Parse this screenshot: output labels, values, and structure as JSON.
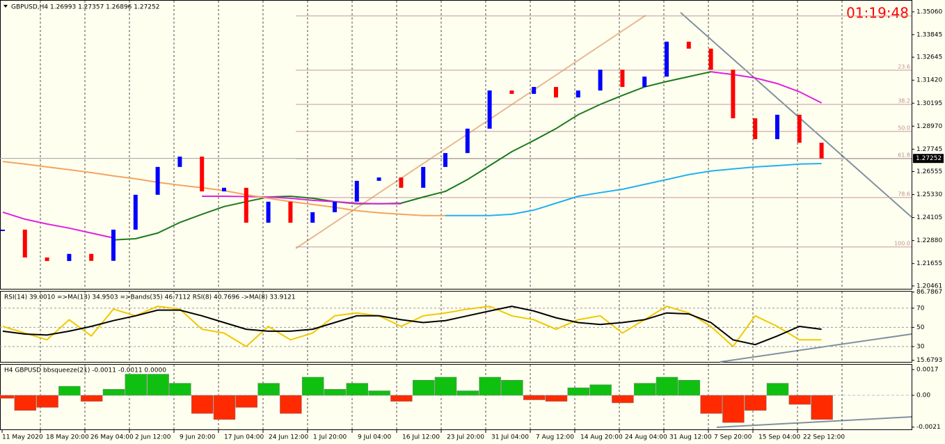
{
  "chart_data": [
    {
      "type": "price",
      "title": "GBPUSD,H4  1.26993 1.27357 1.26896 1.27252",
      "timer": "01:19:48",
      "current_price": {
        "value": 1.27252,
        "label": "1.27252"
      },
      "ylim": [
        1.2031,
        1.3569
      ],
      "yticks": [
        {
          "value": 1.3506,
          "label": "1.35060"
        },
        {
          "value": 1.33845,
          "label": "1.33845"
        },
        {
          "value": 1.32645,
          "label": "1.32645"
        },
        {
          "value": 1.3142,
          "label": "1.31420"
        },
        {
          "value": 1.30195,
          "label": "1.30195"
        },
        {
          "value": 1.2897,
          "label": "1.28970"
        },
        {
          "value": 1.27745,
          "label": "1.27745"
        },
        1.26555,
        {
          "value": 1.2533,
          "label": "1.25330"
        },
        1.24105,
        {
          "value": 1.2288,
          "label": "1.22880"
        },
        1.21655,
        1.20461
      ],
      "levels": [
        {
          "value": 1.3484
        },
        {
          "value": 1.3195,
          "label": "23.6"
        },
        {
          "value": 1.3013,
          "label": "38.2"
        },
        {
          "value": 1.2869,
          "label": "50.0"
        },
        {
          "value": 1.2724,
          "label": "61.8"
        },
        {
          "value": 1.2517,
          "label": "78.6"
        },
        {
          "value": 1.2254,
          "label": "100.0"
        }
      ],
      "up_color": "#0000ff",
      "down_color": "#ff0000",
      "values": [
        1.2346,
        1.2198,
        1.2179,
        1.2217,
        1.218,
        1.2346,
        1.2532,
        1.268,
        1.2735,
        1.255,
        1.2569,
        1.2383,
        1.2495,
        1.2383,
        1.2439,
        1.2495,
        1.2606,
        1.2624,
        1.2569,
        1.268,
        1.2754,
        1.2884,
        1.3087,
        1.3069,
        1.3106,
        1.305,
        1.3087,
        1.3198,
        1.3106,
        1.3161,
        1.3347,
        1.331,
        1.3198,
        1.2939,
        1.2828,
        1.2958,
        1.2809,
        1.2725
      ],
      "series": [
        {
          "color": "#1a7a1a",
          "values": [
            null,
            null,
            null,
            null,
            null,
            1.2291,
            1.2298,
            1.2328,
            1.2384,
            1.2428,
            1.2469,
            1.2495,
            1.252,
            1.2524,
            1.2513,
            1.2495,
            1.2484,
            1.2484,
            1.2487,
            1.252,
            1.255,
            1.2613,
            1.2687,
            1.2761,
            1.2821,
            1.2884,
            1.2958,
            1.3013,
            1.3061,
            1.3106,
            1.3135,
            1.3161,
            1.3187,
            null,
            null,
            null,
            null,
            null
          ]
        },
        {
          "color": "#e020e0",
          "values": [
            1.2439,
            1.2402,
            1.2376,
            1.2354,
            1.2328,
            1.2302,
            null,
            null,
            null,
            1.2524,
            1.2524,
            1.2522,
            1.252,
            1.2513,
            1.2502,
            1.2495,
            1.2487,
            1.2484,
            1.2484,
            null,
            null,
            null,
            null,
            null,
            null,
            null,
            null,
            null,
            null,
            null,
            null,
            null,
            1.3187,
            1.3172,
            1.3154,
            1.3124,
            1.308,
            1.3021
          ]
        },
        {
          "color": "#f4a460",
          "values": [
            1.2709,
            1.2695,
            1.268,
            1.2665,
            1.265,
            1.2632,
            1.2617,
            1.2598,
            1.2583,
            1.2569,
            1.2554,
            1.2532,
            1.2513,
            1.2495,
            1.248,
            1.2465,
            1.2447,
            1.2436,
            1.2428,
            1.2421,
            1.2421,
            null,
            null,
            null,
            null,
            null,
            null,
            null,
            null,
            null,
            null,
            null,
            null,
            null,
            null,
            null,
            null,
            null
          ]
        },
        {
          "color": "#20b0f0",
          "values": [
            null,
            null,
            null,
            null,
            null,
            null,
            null,
            null,
            null,
            null,
            null,
            null,
            null,
            null,
            null,
            null,
            null,
            null,
            null,
            null,
            1.2421,
            1.2421,
            1.2421,
            1.2428,
            1.245,
            1.2487,
            1.2524,
            1.2543,
            1.2561,
            1.2587,
            1.2613,
            1.2639,
            1.2658,
            1.2669,
            1.268,
            1.2687,
            1.2695,
            1.2698
          ]
        }
      ]
    },
    {
      "type": "oscillator",
      "title": "RSI(14) 39.0010  =>MA(13) 34.9503  =>Bands(35) 46.7112  RSI(8) 40.7696  ->MA(8) 33.9121",
      "ylim": [
        14,
        88
      ],
      "yticks": [
        86.7867,
        70,
        50,
        30,
        15.6793
      ],
      "grid_ticks": [
        70,
        50,
        30
      ],
      "series": [
        {
          "color": "#f0c800",
          "values": [
            51,
            44,
            37,
            58,
            41,
            69,
            62,
            72,
            69,
            48,
            44,
            30,
            51,
            37,
            44,
            62,
            65,
            62,
            51,
            62,
            65,
            69,
            72,
            62,
            58,
            48,
            58,
            62,
            44,
            58,
            72,
            65,
            51,
            30,
            62,
            51,
            37,
            37
          ]
        },
        {
          "color": "#000000",
          "values": [
            46,
            43,
            42,
            46,
            51,
            57,
            62,
            68,
            68,
            62,
            55,
            48,
            46,
            46,
            48,
            55,
            62,
            62,
            58,
            55,
            57,
            62,
            67,
            72,
            67,
            60,
            55,
            53,
            55,
            58,
            65,
            64,
            55,
            37,
            32,
            41,
            51,
            48
          ]
        }
      ]
    },
    {
      "type": "histogram",
      "title": "H4 GBPUSD bbsqueeze(21) -0.0011 -0.0011 0.0000",
      "ylim": [
        -0.00225,
        0.00207
      ],
      "yticks": [
        0.0017,
        {
          "value": 0,
          "label": "0.00"
        },
        -0.0021
      ],
      "up_color": "#10c010",
      "down_color": "#ff2a00",
      "values": [
        -0.0002,
        -0.001,
        -0.0008,
        0.0006,
        -0.0004,
        0.0004,
        0.0014,
        0.0014,
        0.0008,
        -0.0012,
        -0.0016,
        -0.0008,
        0.0008,
        -0.0012,
        0.0012,
        0.0004,
        0.0008,
        0.0003,
        -0.0004,
        0.001,
        0.0012,
        0.0003,
        0.0012,
        0.001,
        -0.0003,
        -0.0004,
        0.0005,
        0.0007,
        -0.0005,
        0.0008,
        0.0012,
        0.001,
        -0.0012,
        -0.0018,
        -0.001,
        0.0008,
        -0.0006,
        -0.0016
      ],
      "time_labels": [
        "11 May 2020",
        "18 May 20:00",
        "26 May 04:00",
        "2 Jun 12:00",
        "9 Jun 20:00",
        "17 Jun 04:00",
        "24 Jun 12:00",
        "1 Jul 20:00",
        "9 Jul 04:00",
        "16 Jul 12:00",
        "23 Jul 20:00",
        "31 Jul 04:00",
        "7 Aug 12:00",
        "14 Aug 20:00",
        "24 Aug 04:00",
        "31 Aug 12:00",
        "7 Sep 20:00",
        "15 Sep 04:00",
        "22 Sep 12:00"
      ]
    }
  ]
}
